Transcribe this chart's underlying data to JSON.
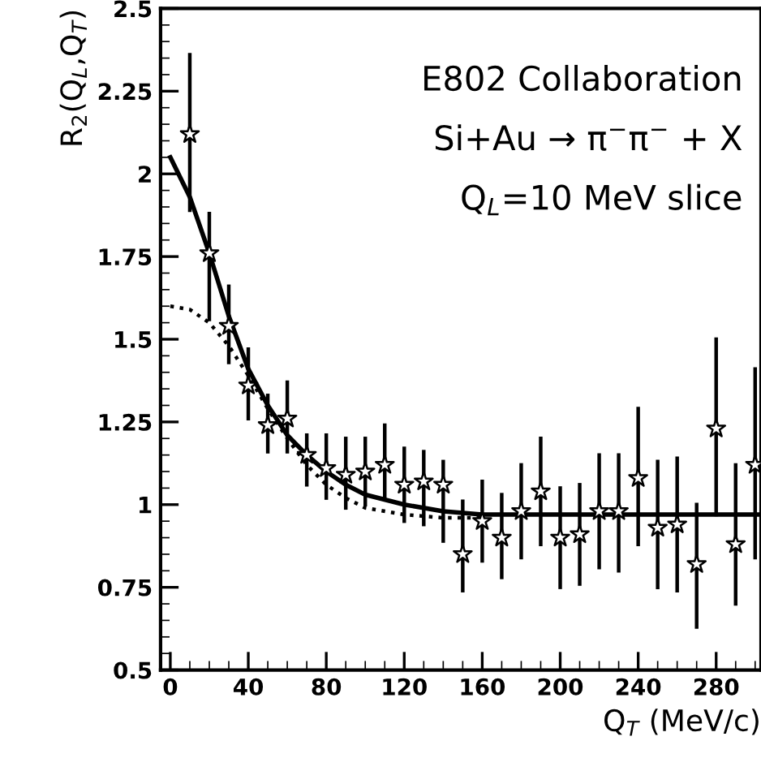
{
  "chart_data": {
    "type": "scatter",
    "xlabel": "Q$_{T}$ (MeV/c)",
    "ylabel": "R$_{2}$(Q$_{L}$,Q$_{T}$)",
    "annotations": [
      "E802 Collaboration",
      "Si+Au → π$^{−}$π$^{−}$ + X",
      "Q$_{L}$=10 MeV slice"
    ],
    "xlim": [
      -5,
      303
    ],
    "ylim": [
      0.5,
      2.5
    ],
    "xticks": [
      0,
      40,
      80,
      120,
      160,
      200,
      240,
      280
    ],
    "yticks": [
      0.5,
      0.75,
      1,
      1.25,
      1.5,
      1.75,
      2,
      2.25,
      2.5
    ],
    "grid": false,
    "legend": false,
    "series": [
      {
        "color": "#000000",
        "marker": "star",
        "x": [
          10,
          20,
          30,
          40,
          50,
          60,
          70,
          80,
          90,
          100,
          110,
          120,
          130,
          140,
          150,
          160,
          170,
          180,
          190,
          200,
          210,
          220,
          230,
          240,
          250,
          260,
          270,
          280,
          290,
          300
        ],
        "values": [
          2.12,
          1.76,
          1.54,
          1.36,
          1.24,
          1.26,
          1.15,
          1.11,
          1.09,
          1.1,
          1.12,
          1.06,
          1.07,
          1.06,
          0.85,
          0.95,
          0.9,
          0.98,
          1.04,
          0.9,
          0.91,
          0.98,
          0.98,
          1.08,
          0.93,
          0.94,
          0.82,
          1.23,
          0.88,
          1.12
        ],
        "errors": [
          [
            1.89,
            2.36
          ],
          [
            1.56,
            1.88
          ],
          [
            1.43,
            1.66
          ],
          [
            1.26,
            1.47
          ],
          [
            1.16,
            1.33
          ],
          [
            1.16,
            1.37
          ],
          [
            1.06,
            1.21
          ],
          [
            1.02,
            1.21
          ],
          [
            0.99,
            1.2
          ],
          [
            1.0,
            1.2
          ],
          [
            1.02,
            1.24
          ],
          [
            0.95,
            1.17
          ],
          [
            0.94,
            1.16
          ],
          [
            0.89,
            1.13
          ],
          [
            0.74,
            1.01
          ],
          [
            0.83,
            1.07
          ],
          [
            0.78,
            1.03
          ],
          [
            0.84,
            1.12
          ],
          [
            0.88,
            1.2
          ],
          [
            0.75,
            1.05
          ],
          [
            0.76,
            1.06
          ],
          [
            0.81,
            1.15
          ],
          [
            0.8,
            1.15
          ],
          [
            0.88,
            1.29
          ],
          [
            0.75,
            1.13
          ],
          [
            0.74,
            1.14
          ],
          [
            0.63,
            1.0
          ],
          [
            0.97,
            1.5
          ],
          [
            0.7,
            1.12
          ],
          [
            0.84,
            1.41
          ]
        ]
      },
      {
        "type": "line",
        "color": "#000000",
        "line_style": "solid",
        "x": [
          0,
          10,
          20,
          30,
          40,
          50,
          60,
          70,
          80,
          90,
          100,
          120,
          140,
          160,
          200,
          303
        ],
        "values": [
          2.05,
          1.93,
          1.76,
          1.57,
          1.41,
          1.3,
          1.21,
          1.15,
          1.1,
          1.06,
          1.03,
          1.0,
          0.98,
          0.97,
          0.97,
          0.97
        ]
      },
      {
        "type": "line",
        "color": "#000000",
        "line_style": "dotted",
        "x": [
          0,
          10,
          20,
          30,
          40,
          50,
          60,
          70,
          80,
          90,
          100,
          120,
          140,
          160
        ],
        "values": [
          1.6,
          1.59,
          1.55,
          1.48,
          1.39,
          1.29,
          1.2,
          1.12,
          1.06,
          1.02,
          0.99,
          0.97,
          0.96,
          0.96
        ]
      }
    ]
  }
}
